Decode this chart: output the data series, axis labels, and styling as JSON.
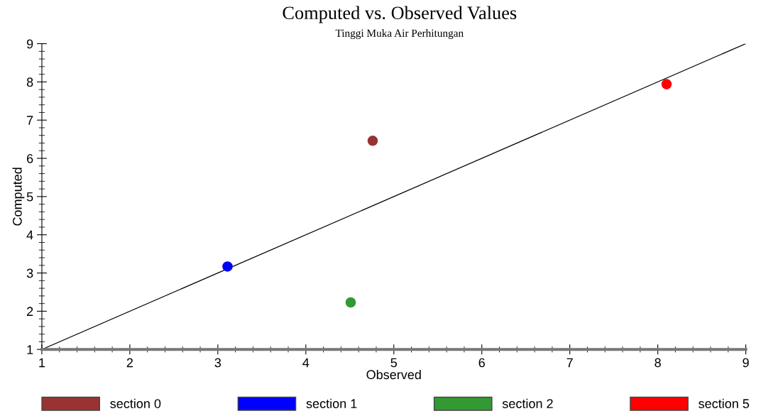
{
  "chart_data": {
    "type": "scatter",
    "title": "Computed vs. Observed Values",
    "subtitle": "Tinggi Muka Air Perhitungan",
    "xlabel": "Observed",
    "ylabel": "Computed",
    "series": [
      {
        "name": "section 0",
        "color": "#993333",
        "x": [
          4.76
        ],
        "values": [
          6.46
        ],
        "marker": "circle"
      },
      {
        "name": "section 1",
        "color": "#0000ff",
        "x": [
          3.11
        ],
        "values": [
          3.17
        ],
        "marker": "circle"
      },
      {
        "name": "section 2",
        "color": "#339933",
        "x": [
          4.51
        ],
        "values": [
          2.23
        ],
        "marker": "circle"
      },
      {
        "name": "section 5",
        "color": "#ff0000",
        "x": [
          8.1
        ],
        "values": [
          7.94
        ],
        "marker": "circle"
      },
      {
        "type": "line",
        "color": "#000000",
        "x": [
          1,
          9
        ],
        "values": [
          1,
          9
        ]
      }
    ],
    "xlim": [
      1,
      9
    ],
    "ylim": [
      1,
      9
    ],
    "xticks": [
      1,
      2,
      3,
      4,
      5,
      6,
      7,
      8,
      9
    ],
    "yticks": [
      1,
      2,
      3,
      4,
      5,
      6,
      7,
      8,
      9
    ],
    "grid": false,
    "legend": "bottom"
  }
}
